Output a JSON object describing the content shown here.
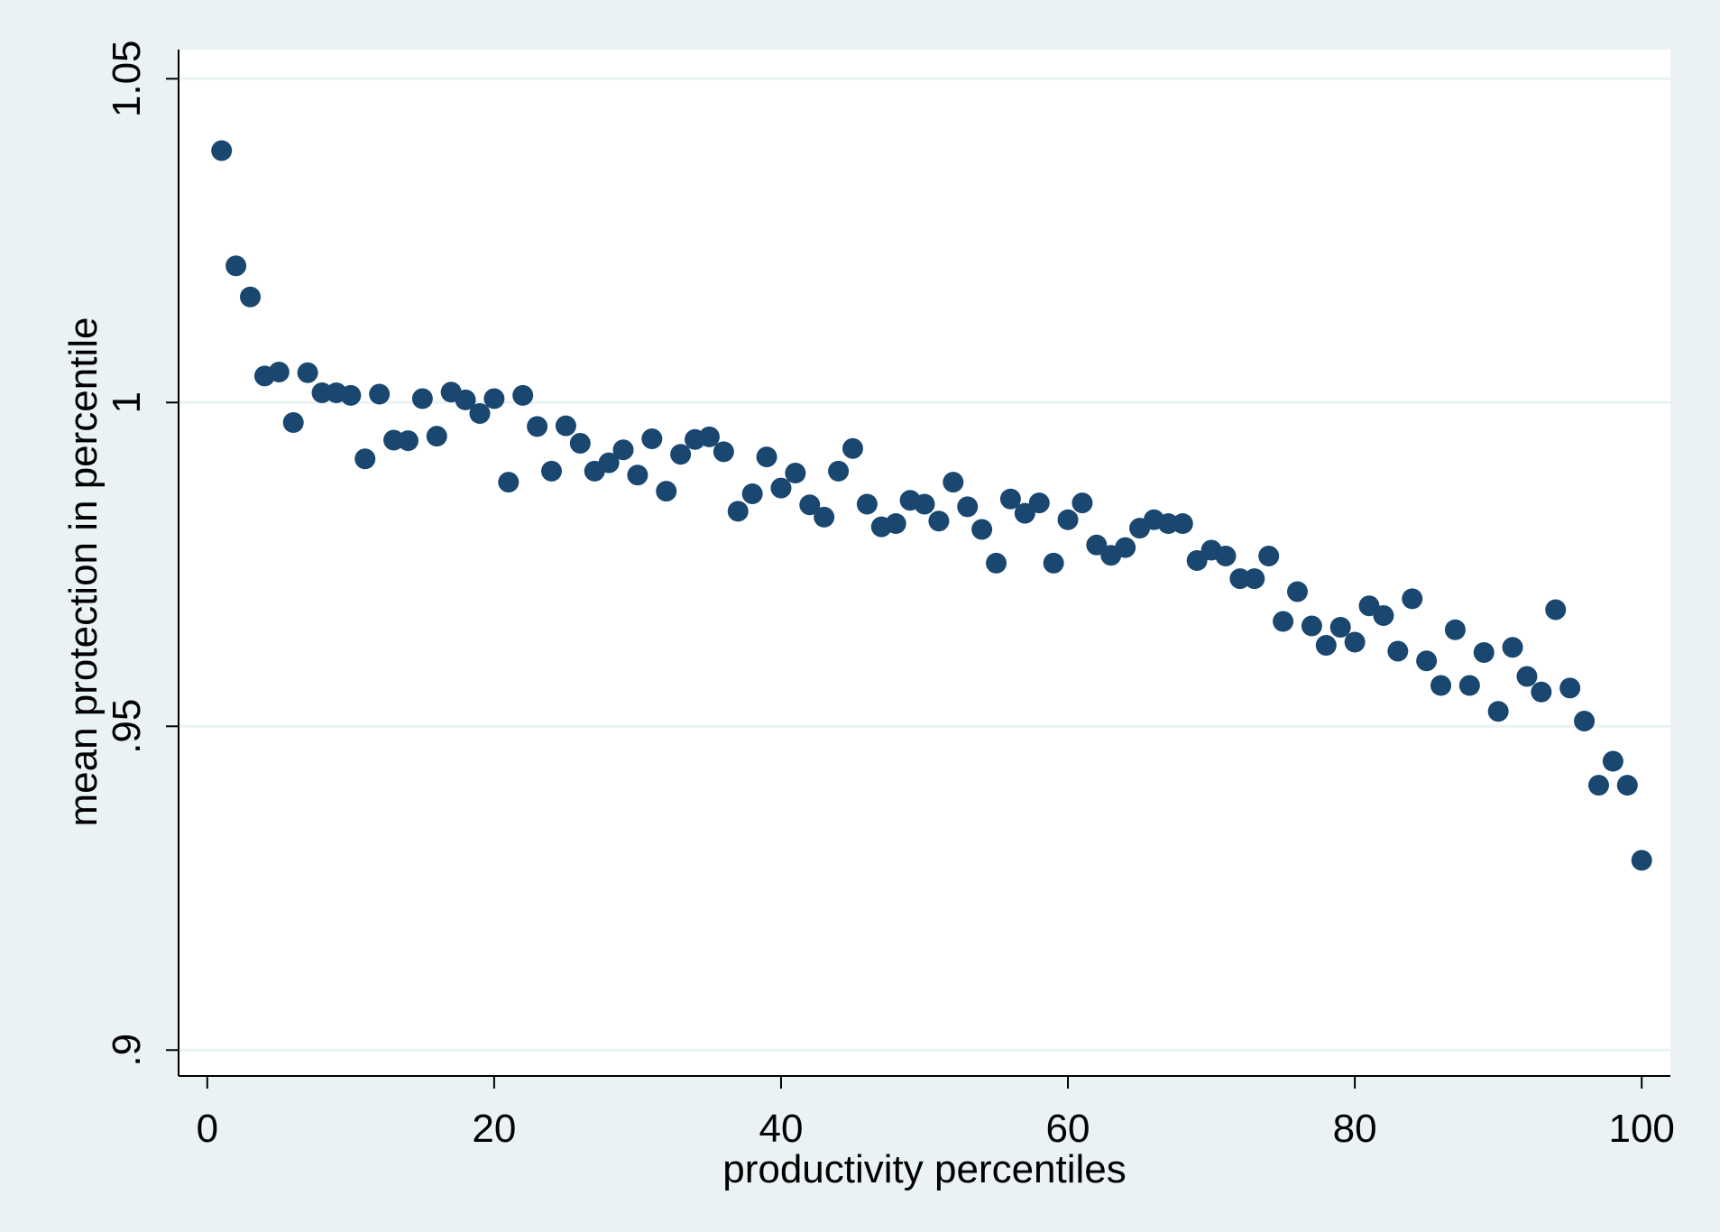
{
  "chart_data": {
    "type": "scatter",
    "title": "",
    "xlabel": "productivity percentiles",
    "ylabel": "mean protection in percentile",
    "xlim": [
      -2,
      102
    ],
    "ylim": [
      0.896,
      1.0545
    ],
    "x_ticks": [
      0,
      20,
      40,
      60,
      80,
      100
    ],
    "x_tick_labels": [
      "0",
      "20",
      "40",
      "60",
      "80",
      "100"
    ],
    "y_ticks": [
      0.9,
      0.95,
      1.0,
      1.05
    ],
    "y_tick_labels": [
      ".9",
      ".95",
      "1",
      "1.05"
    ],
    "grid": "horizontal",
    "legend": "none",
    "colors": {
      "outer_background": "#eaf2f3",
      "plot_background": "#ffffff",
      "marker": "#1a476f",
      "grid": "#eaf2f3"
    },
    "series": [
      {
        "marker": "filled-circle",
        "points": [
          [
            1,
            1.0389
          ],
          [
            2,
            1.0211
          ],
          [
            3,
            1.0163
          ],
          [
            4,
            1.0041
          ],
          [
            5,
            1.0047
          ],
          [
            6,
            0.9969
          ],
          [
            7,
            1.0046
          ],
          [
            8,
            1.0015
          ],
          [
            9,
            1.0015
          ],
          [
            10,
            1.0011
          ],
          [
            11,
            0.9913
          ],
          [
            12,
            1.0013
          ],
          [
            13,
            0.9942
          ],
          [
            14,
            0.9941
          ],
          [
            15,
            1.0006
          ],
          [
            16,
            0.9948
          ],
          [
            17,
            1.0016
          ],
          [
            18,
            1.0004
          ],
          [
            19,
            0.9983
          ],
          [
            20,
            1.0006
          ],
          [
            21,
            0.9877
          ],
          [
            22,
            1.0011
          ],
          [
            23,
            0.9963
          ],
          [
            24,
            0.9894
          ],
          [
            25,
            0.9964
          ],
          [
            26,
            0.9937
          ],
          [
            27,
            0.9894
          ],
          [
            28,
            0.9907
          ],
          [
            29,
            0.9927
          ],
          [
            30,
            0.9888
          ],
          [
            31,
            0.9944
          ],
          [
            32,
            0.9863
          ],
          [
            33,
            0.992
          ],
          [
            34,
            0.9943
          ],
          [
            35,
            0.9947
          ],
          [
            36,
            0.9924
          ],
          [
            37,
            0.9832
          ],
          [
            38,
            0.9859
          ],
          [
            39,
            0.9916
          ],
          [
            40,
            0.9868
          ],
          [
            41,
            0.9891
          ],
          [
            42,
            0.9842
          ],
          [
            43,
            0.9823
          ],
          [
            44,
            0.9894
          ],
          [
            45,
            0.9929
          ],
          [
            46,
            0.9843
          ],
          [
            47,
            0.9808
          ],
          [
            48,
            0.9813
          ],
          [
            49,
            0.9849
          ],
          [
            50,
            0.9843
          ],
          [
            51,
            0.9817
          ],
          [
            52,
            0.9877
          ],
          [
            53,
            0.9839
          ],
          [
            54,
            0.9804
          ],
          [
            55,
            0.9752
          ],
          [
            56,
            0.9851
          ],
          [
            57,
            0.9829
          ],
          [
            58,
            0.9845
          ],
          [
            59,
            0.9752
          ],
          [
            60,
            0.9819
          ],
          [
            61,
            0.9845
          ],
          [
            62,
            0.978
          ],
          [
            63,
            0.9764
          ],
          [
            64,
            0.9776
          ],
          [
            65,
            0.9806
          ],
          [
            66,
            0.9819
          ],
          [
            67,
            0.9813
          ],
          [
            68,
            0.9813
          ],
          [
            69,
            0.9756
          ],
          [
            70,
            0.9772
          ],
          [
            71,
            0.9763
          ],
          [
            72,
            0.9728
          ],
          [
            73,
            0.9728
          ],
          [
            74,
            0.9763
          ],
          [
            75,
            0.9662
          ],
          [
            76,
            0.9708
          ],
          [
            77,
            0.9655
          ],
          [
            78,
            0.9625
          ],
          [
            79,
            0.9653
          ],
          [
            80,
            0.963
          ],
          [
            81,
            0.9686
          ],
          [
            82,
            0.9671
          ],
          [
            83,
            0.9616
          ],
          [
            84,
            0.9697
          ],
          [
            85,
            0.9601
          ],
          [
            86,
            0.9563
          ],
          [
            87,
            0.9649
          ],
          [
            88,
            0.9563
          ],
          [
            89,
            0.9614
          ],
          [
            90,
            0.9523
          ],
          [
            91,
            0.9622
          ],
          [
            92,
            0.9577
          ],
          [
            93,
            0.9553
          ],
          [
            94,
            0.968
          ],
          [
            95,
            0.9559
          ],
          [
            96,
            0.9508
          ],
          [
            97,
            0.9409
          ],
          [
            98,
            0.9446
          ],
          [
            99,
            0.9409
          ],
          [
            100,
            0.9293
          ]
        ]
      }
    ]
  }
}
